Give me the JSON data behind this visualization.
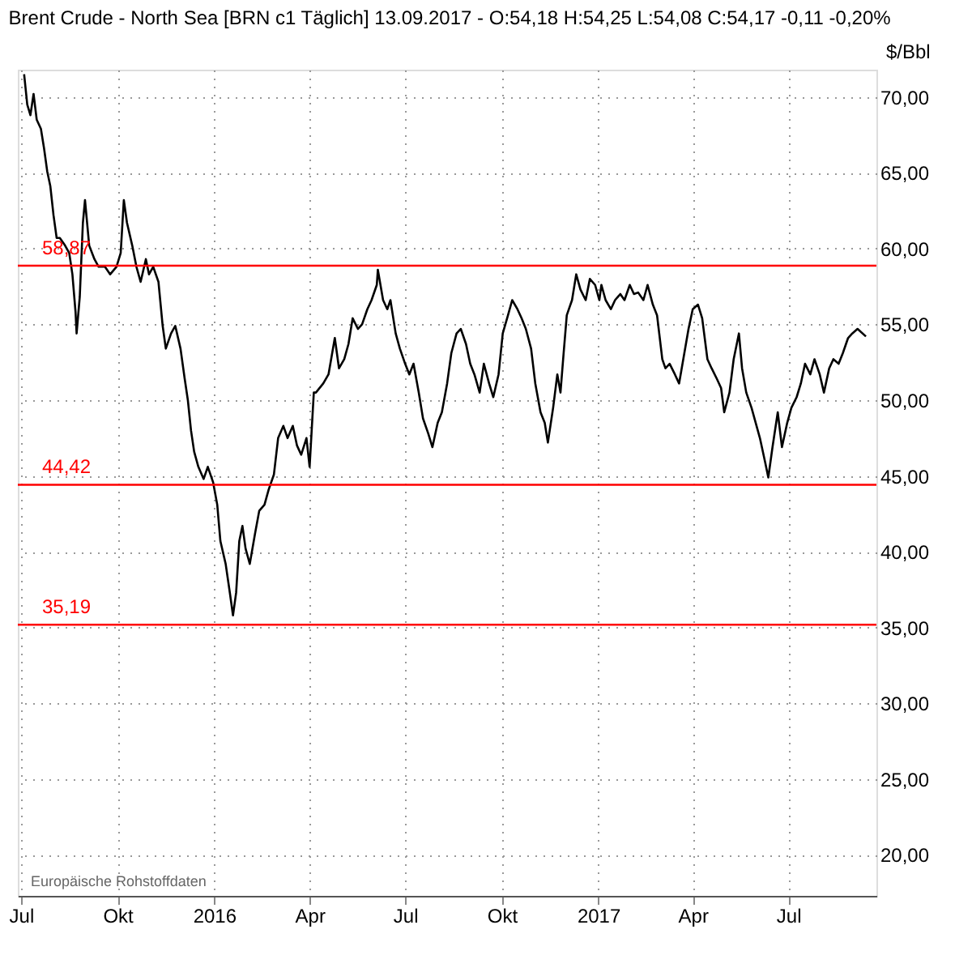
{
  "chart_data": {
    "type": "line",
    "title": "Brent Crude - North Sea [BRN c1 Täglich] 13.09.2017 - O:54,18 H:54,25 L:54,08 C:54,17 -0,11 -0,20%",
    "ylabel": "$/Bbl",
    "annotations": [
      "Europäische Rohstoffdaten"
    ],
    "x": [
      "2015-07-04",
      "2015-07-07",
      "2015-07-10",
      "2015-07-13",
      "2015-07-16",
      "2015-07-20",
      "2015-07-23",
      "2015-07-26",
      "2015-07-29",
      "2015-08-01",
      "2015-08-04",
      "2015-08-07",
      "2015-08-12",
      "2015-08-16",
      "2015-08-19",
      "2015-08-22",
      "2015-08-23",
      "2015-08-26",
      "2015-08-29",
      "2015-08-31",
      "2015-09-04",
      "2015-09-09",
      "2015-09-13",
      "2015-09-19",
      "2015-09-24",
      "2015-09-30",
      "2015-10-04",
      "2015-10-07",
      "2015-10-10",
      "2015-10-15",
      "2015-10-19",
      "2015-10-23",
      "2015-10-28",
      "2015-10-31",
      "2015-11-04",
      "2015-11-09",
      "2015-11-13",
      "2015-11-16",
      "2015-11-21",
      "2015-11-25",
      "2015-11-30",
      "2015-12-04",
      "2015-12-07",
      "2015-12-10",
      "2015-12-13",
      "2015-12-17",
      "2015-12-22",
      "2015-12-26",
      "2015-12-31",
      "2016-01-04",
      "2016-01-07",
      "2016-01-12",
      "2016-01-16",
      "2016-01-19",
      "2016-01-22",
      "2016-01-25",
      "2016-01-28",
      "2016-01-31",
      "2016-02-04",
      "2016-02-09",
      "2016-02-13",
      "2016-02-18",
      "2016-02-22",
      "2016-02-27",
      "2016-03-02",
      "2016-03-07",
      "2016-03-11",
      "2016-03-16",
      "2016-03-20",
      "2016-03-24",
      "2016-03-29",
      "2016-04-01",
      "2016-04-05",
      "2016-04-07",
      "2016-04-14",
      "2016-04-19",
      "2016-04-25",
      "2016-04-29",
      "2016-05-04",
      "2016-05-08",
      "2016-05-12",
      "2016-05-17",
      "2016-05-21",
      "2016-05-26",
      "2016-05-30",
      "2016-06-04",
      "2016-06-05",
      "2016-06-10",
      "2016-06-14",
      "2016-06-17",
      "2016-06-22",
      "2016-06-26",
      "2016-07-01",
      "2016-07-05",
      "2016-07-09",
      "2016-07-14",
      "2016-07-18",
      "2016-07-23",
      "2016-07-27",
      "2016-08-01",
      "2016-08-05",
      "2016-08-10",
      "2016-08-14",
      "2016-08-19",
      "2016-08-23",
      "2016-08-28",
      "2016-09-01",
      "2016-09-05",
      "2016-09-10",
      "2016-09-14",
      "2016-09-19",
      "2016-09-23",
      "2016-09-28",
      "2016-10-02",
      "2016-10-07",
      "2016-10-11",
      "2016-10-16",
      "2016-10-20",
      "2016-10-24",
      "2016-10-29",
      "2016-11-02",
      "2016-11-07",
      "2016-11-11",
      "2016-11-14",
      "2016-11-19",
      "2016-11-23",
      "2016-11-26",
      "2016-11-29",
      "2016-12-02",
      "2016-12-07",
      "2016-12-11",
      "2016-12-15",
      "2016-12-20",
      "2016-12-24",
      "2016-12-29",
      "2017-01-02",
      "2017-01-04",
      "2017-01-08",
      "2017-01-13",
      "2017-01-17",
      "2017-01-22",
      "2017-01-26",
      "2017-01-31",
      "2017-02-04",
      "2017-02-08",
      "2017-02-13",
      "2017-02-17",
      "2017-02-22",
      "2017-02-26",
      "2017-03-03",
      "2017-03-06",
      "2017-03-10",
      "2017-03-15",
      "2017-03-19",
      "2017-03-24",
      "2017-03-28",
      "2017-04-01",
      "2017-04-06",
      "2017-04-10",
      "2017-04-15",
      "2017-04-19",
      "2017-04-24",
      "2017-04-28",
      "2017-05-01",
      "2017-05-06",
      "2017-05-10",
      "2017-05-15",
      "2017-05-18",
      "2017-05-22",
      "2017-05-27",
      "2017-05-31",
      "2017-06-04",
      "2017-06-09",
      "2017-06-12",
      "2017-06-16",
      "2017-06-21",
      "2017-06-25",
      "2017-06-30",
      "2017-07-04",
      "2017-07-09",
      "2017-07-13",
      "2017-07-17",
      "2017-07-22",
      "2017-07-26",
      "2017-07-31",
      "2017-08-04",
      "2017-08-09",
      "2017-08-13",
      "2017-08-18",
      "2017-08-22",
      "2017-08-27",
      "2017-08-31",
      "2017-09-05",
      "2017-09-13"
    ],
    "series": [
      {
        "color": "#000000",
        "values": [
          71.5,
          69.5,
          68.8,
          70.2,
          68.5,
          67.9,
          66.6,
          65.1,
          64.1,
          62.2,
          60.7,
          60.7,
          60.2,
          59.7,
          58.3,
          55.8,
          54.4,
          56.8,
          61.7,
          63.2,
          60.2,
          59.3,
          58.8,
          58.8,
          58.3,
          58.8,
          59.7,
          63.2,
          61.7,
          60.2,
          58.8,
          57.8,
          59.3,
          58.3,
          58.8,
          57.8,
          54.9,
          53.4,
          54.4,
          54.9,
          53.4,
          51.4,
          50.0,
          48.0,
          46.6,
          45.6,
          44.8,
          45.6,
          44.6,
          43.1,
          40.7,
          39.2,
          37.3,
          35.8,
          37.3,
          40.7,
          41.7,
          40.2,
          39.2,
          41.2,
          42.7,
          43.1,
          44.1,
          45.1,
          47.5,
          48.3,
          47.5,
          48.3,
          47.0,
          46.4,
          47.5,
          45.6,
          50.5,
          50.5,
          51.1,
          51.7,
          54.1,
          52.1,
          52.7,
          53.7,
          55.4,
          54.7,
          55.0,
          56.0,
          56.6,
          57.6,
          58.6,
          56.6,
          56.0,
          56.6,
          54.4,
          53.4,
          52.4,
          51.7,
          52.4,
          50.5,
          48.8,
          47.8,
          46.9,
          48.5,
          49.2,
          51.1,
          53.1,
          54.4,
          54.7,
          53.7,
          52.4,
          51.7,
          50.5,
          52.4,
          51.1,
          50.2,
          51.7,
          54.4,
          55.6,
          56.6,
          56.0,
          55.4,
          54.7,
          53.4,
          51.1,
          49.2,
          48.5,
          47.2,
          49.5,
          51.7,
          50.5,
          53.1,
          55.6,
          56.6,
          58.3,
          57.3,
          56.6,
          58.0,
          57.6,
          56.6,
          57.6,
          56.6,
          56.0,
          56.6,
          57.0,
          56.6,
          57.6,
          57.0,
          57.1,
          56.6,
          57.6,
          56.3,
          55.6,
          52.7,
          52.1,
          52.4,
          51.7,
          51.1,
          53.1,
          54.7,
          56.0,
          56.3,
          55.4,
          52.7,
          52.1,
          51.4,
          50.8,
          49.2,
          50.5,
          52.7,
          54.4,
          52.1,
          50.5,
          49.5,
          48.5,
          47.5,
          45.9,
          44.9,
          46.9,
          49.2,
          46.9,
          48.5,
          49.5,
          50.2,
          51.1,
          52.4,
          51.7,
          52.7,
          51.7,
          50.5,
          52.1,
          52.7,
          52.4,
          53.1,
          54.1,
          54.4,
          54.7,
          54.2
        ]
      }
    ],
    "xlim": [
      "2015-06-28",
      "2017-09-23"
    ],
    "xticks": [
      {
        "value": "2015-07-01",
        "label": "Jul"
      },
      {
        "value": "2015-10-01",
        "label": "Okt"
      },
      {
        "value": "2016-01-01",
        "label": "2016"
      },
      {
        "value": "2016-04-01",
        "label": "Apr"
      },
      {
        "value": "2016-07-01",
        "label": "Jul"
      },
      {
        "value": "2016-10-01",
        "label": "Okt"
      },
      {
        "value": "2017-01-01",
        "label": "2017"
      },
      {
        "value": "2017-04-01",
        "label": "Apr"
      },
      {
        "value": "2017-07-01",
        "label": "Jul"
      }
    ],
    "ylim": [
      17.3,
      71.8
    ],
    "yticks": [
      {
        "value": 20,
        "label": "20,00"
      },
      {
        "value": 25,
        "label": "25,00"
      },
      {
        "value": 30,
        "label": "30,00"
      },
      {
        "value": 35,
        "label": "35,00"
      },
      {
        "value": 40,
        "label": "40,00"
      },
      {
        "value": 45,
        "label": "45,00"
      },
      {
        "value": 50,
        "label": "50,00"
      },
      {
        "value": 55,
        "label": "55,00"
      },
      {
        "value": 60,
        "label": "60,00"
      },
      {
        "value": 65,
        "label": "65,00"
      },
      {
        "value": 70,
        "label": "70,00"
      }
    ],
    "ref_lines": [
      {
        "axis": "y",
        "value": 58.87,
        "label": "58,87",
        "color": "#ff0000"
      },
      {
        "axis": "y",
        "value": 44.42,
        "label": "44,42",
        "color": "#ff0000"
      },
      {
        "axis": "y",
        "value": 35.19,
        "label": "35,19",
        "color": "#ff0000"
      }
    ],
    "grid": true
  }
}
